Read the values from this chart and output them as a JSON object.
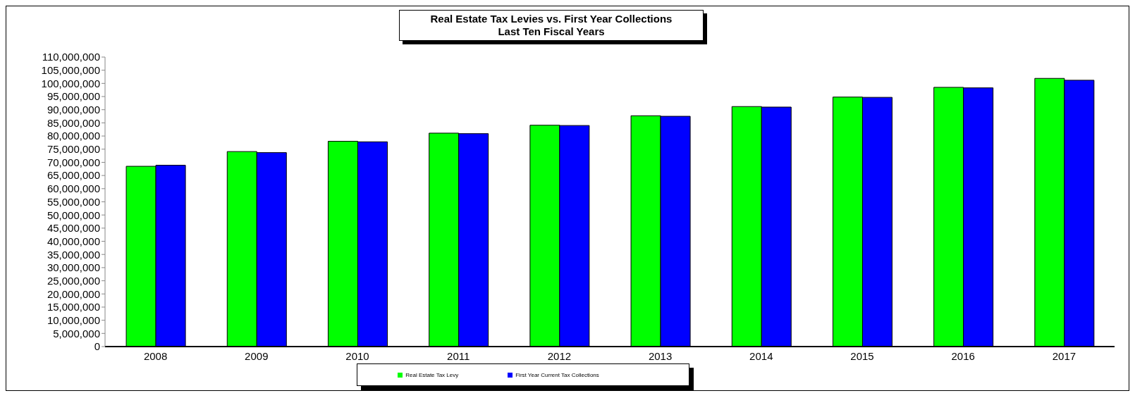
{
  "chart_data": {
    "type": "bar",
    "title": "Real Estate Tax Levies vs. First Year Collections",
    "subtitle": "Last Ten Fiscal Years",
    "categories": [
      "2008",
      "2009",
      "2010",
      "2011",
      "2012",
      "2013",
      "2014",
      "2015",
      "2016",
      "2017"
    ],
    "series": [
      {
        "name": "Real Estate Tax Levy",
        "color": "#00ff00",
        "values": [
          68500000,
          74100000,
          78000000,
          81100000,
          84100000,
          87700000,
          91200000,
          94800000,
          98500000,
          101900000
        ]
      },
      {
        "name": "First Year Current Tax Collections",
        "color": "#0000ff",
        "values": [
          68900000,
          73700000,
          77800000,
          80900000,
          84000000,
          87500000,
          91000000,
          94700000,
          98300000,
          101200000
        ]
      }
    ],
    "ylim": [
      0,
      110000000
    ],
    "yticks": [
      0,
      {
        "value": 5000000,
        "label": "5,000,000"
      },
      {
        "value": 10000000,
        "label": "10,000,000"
      },
      {
        "value": 15000000,
        "label": "15,000,000"
      },
      {
        "value": 20000000,
        "label": "20,000,000"
      },
      {
        "value": 25000000,
        "label": "25,000,000"
      },
      {
        "value": 30000000,
        "label": "30,000,000"
      },
      {
        "value": 35000000,
        "label": "35,000,000"
      },
      {
        "value": 40000000,
        "label": "40,000,000"
      },
      {
        "value": 45000000,
        "label": "45,000,000"
      },
      {
        "value": 50000000,
        "label": "50,000,000"
      },
      {
        "value": 55000000,
        "label": "55,000,000"
      },
      {
        "value": 60000000,
        "label": "60,000,000"
      },
      {
        "value": 65000000,
        "label": "65,000,000"
      },
      {
        "value": 70000000,
        "label": "70,000,000"
      },
      {
        "value": 75000000,
        "label": "75,000,000"
      },
      {
        "value": 80000000,
        "label": "80,000,000"
      },
      {
        "value": 85000000,
        "label": "85,000,000"
      },
      {
        "value": 90000000,
        "label": "90,000,000"
      },
      {
        "value": 95000000,
        "label": "95,000,000"
      },
      {
        "value": 100000000,
        "label": "100,000,000"
      },
      {
        "value": 105000000,
        "label": "105,000,000"
      },
      {
        "value": 110000000,
        "label": "110,000,000"
      }
    ],
    "grid": false,
    "legend": "bottom"
  }
}
